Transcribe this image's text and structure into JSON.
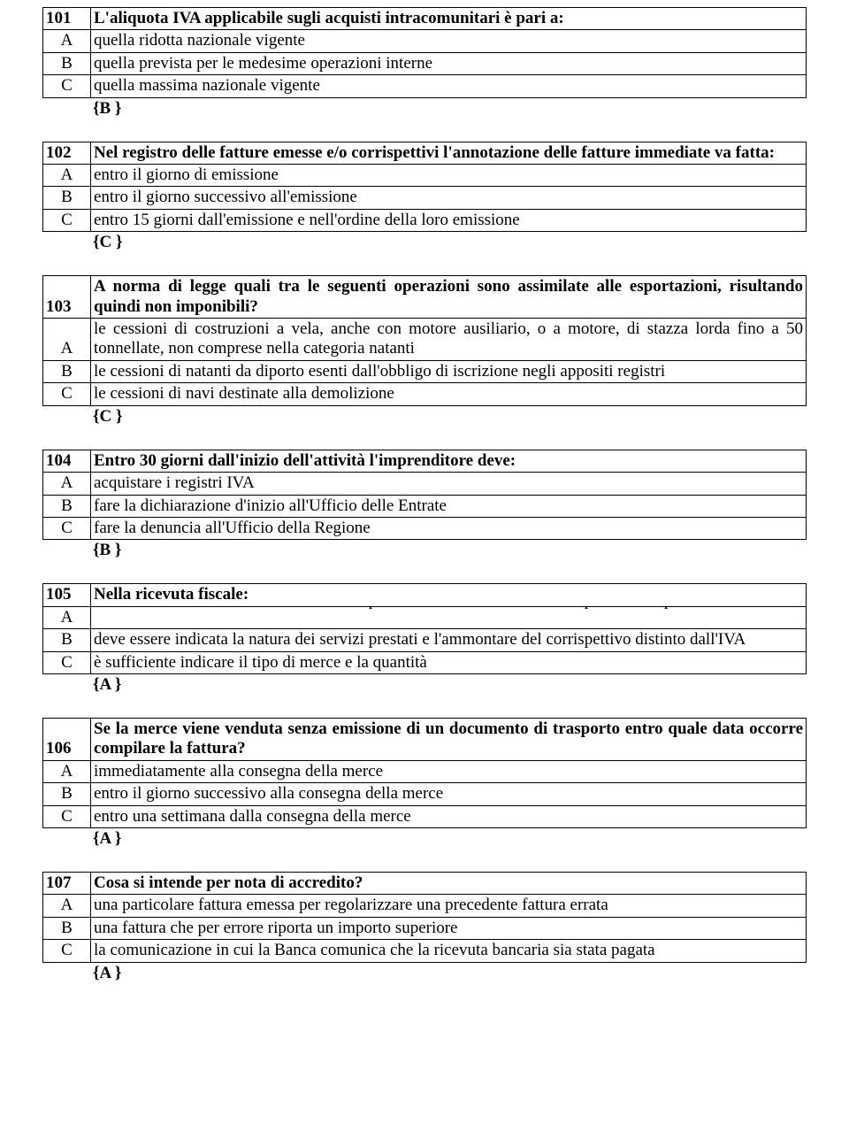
{
  "questions": [
    {
      "num": "101",
      "text": "L'aliquota IVA applicabile sugli acquisti intracomunitari è pari a:",
      "options": {
        "A": "quella ridotta nazionale vigente",
        "B": "quella prevista per le medesime operazioni interne",
        "C": "quella massima nazionale vigente"
      },
      "answer": "{B }"
    },
    {
      "num": "102",
      "text": "Nel registro delle fatture emesse e/o corrispettivi l'annotazione delle fatture immediate va fatta:",
      "options": {
        "A": "entro il giorno di emissione",
        "B": "entro il giorno successivo all'emissione",
        "C": "entro 15 giorni dall'emissione e nell'ordine della loro emissione"
      },
      "answer": "{C }"
    },
    {
      "num": "103",
      "text": "A norma di legge quali tra le seguenti operazioni sono assimilate alle esportazioni, risultando quindi non imponibili?",
      "options": {
        "A": "le cessioni di costruzioni a vela, anche con motore ausiliario, o a motore, di stazza lorda fino a 50 tonnellate, non comprese nella categoria natanti",
        "B": "le cessioni di natanti da diporto esenti dall'obbligo di iscrizione negli appositi registri",
        "C": "le cessioni di navi destinate alla demolizione"
      },
      "answer": "{C }"
    },
    {
      "num": "104",
      "text": "Entro 30 giorni dall'inizio dell'attività l'imprenditore deve:",
      "options": {
        "A": "acquistare i registri IVA",
        "B": "fare la dichiarazione d'inizio all'Ufficio delle Entrate",
        "C": "fare la denuncia all'Ufficio della Regione"
      },
      "answer": "{B }"
    },
    {
      "num": "105",
      "text": "Nella ricevuta fiscale:",
      "overflowA": "deve essere indicata la natura dei servizi prestati e l'ammontare del corrispettivo comprensivo di IVA",
      "options": {
        "B": "deve essere indicata la natura dei servizi prestati e l'ammontare del corrispettivo distinto dall'IVA",
        "C": "è sufficiente indicare il tipo di merce e la quantità"
      },
      "answer": "{A }"
    },
    {
      "num": "106",
      "text": "Se la merce viene venduta senza emissione di un documento di trasporto entro quale data occorre compilare la fattura?",
      "options": {
        "A": "immediatamente alla consegna della merce",
        "B": "entro il giorno successivo alla consegna della merce",
        "C": "entro una settimana dalla consegna della merce"
      },
      "answer": "{A }"
    },
    {
      "num": "107",
      "text": "Cosa si intende per nota di accredito?",
      "options": {
        "A": "una particolare fattura emessa per regolarizzare una precedente fattura errata",
        "B": "una fattura che per errore riporta un importo superiore",
        "C": "la comunicazione in cui la Banca comunica che la ricevuta bancaria sia stata pagata"
      },
      "answer": "{A }"
    }
  ]
}
